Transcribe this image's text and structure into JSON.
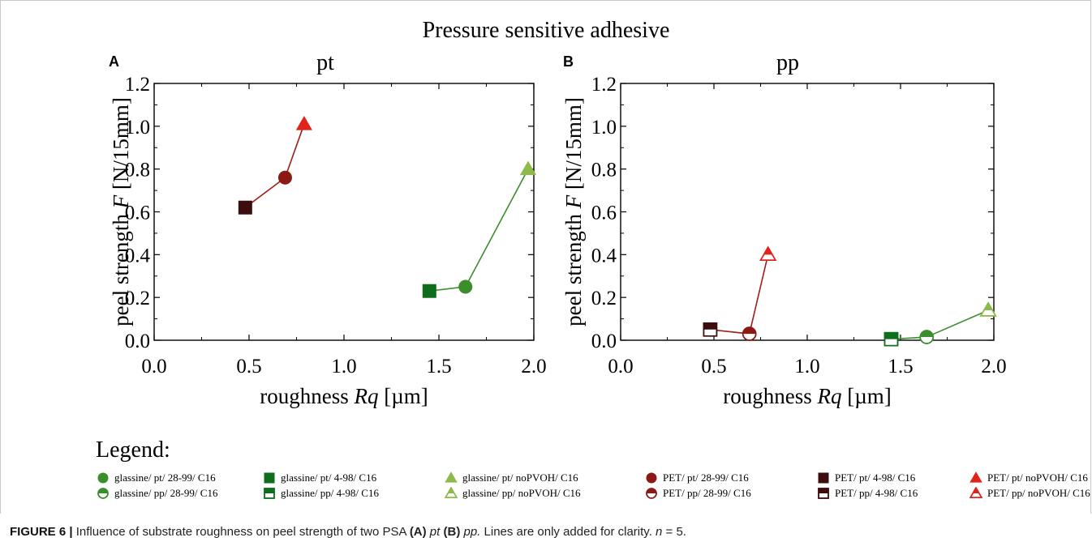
{
  "figure_title": "Pressure sensitive adhesive",
  "panels": [
    {
      "letter": "A",
      "title": "pt"
    },
    {
      "letter": "B",
      "title": "pp"
    }
  ],
  "legend_title": "Legend:",
  "legend": [
    {
      "label": "glassine/ pt/ 28-99/ C16",
      "shape": "circle",
      "fill": "full",
      "color": "#3a8f2c"
    },
    {
      "label": "glassine/ pt/ 4-98/ C16",
      "shape": "square",
      "fill": "full",
      "color": "#0f6e1c"
    },
    {
      "label": "glassine/ pt/ noPVOH/ C16",
      "shape": "triangle",
      "fill": "full",
      "color": "#8dbb4a"
    },
    {
      "label": "PET/ pt/ 28-99/ C16",
      "shape": "circle",
      "fill": "full",
      "color": "#8b1a14"
    },
    {
      "label": "PET/ pt/ 4-98/ C16",
      "shape": "square",
      "fill": "full",
      "color": "#3d0d0d"
    },
    {
      "label": "PET/ pt/ noPVOH/ C16",
      "shape": "triangle",
      "fill": "full",
      "color": "#e0231b"
    },
    {
      "label": "glassine/ pp/ 28-99/ C16",
      "shape": "circle",
      "fill": "half",
      "color": "#3a8f2c"
    },
    {
      "label": "glassine/ pp/ 4-98/ C16",
      "shape": "square",
      "fill": "half",
      "color": "#0f6e1c"
    },
    {
      "label": "glassine/ pp/ noPVOH/ C16",
      "shape": "triangle",
      "fill": "half",
      "color": "#8dbb4a"
    },
    {
      "label": "PET/ pp/ 28-99/ C16",
      "shape": "circle",
      "fill": "half",
      "color": "#8b1a14"
    },
    {
      "label": "PET/ pp/ 4-98/ C16",
      "shape": "square",
      "fill": "half",
      "color": "#3d0d0d"
    },
    {
      "label": "PET/ pp/ noPVOH/ C16",
      "shape": "triangle",
      "fill": "half",
      "color": "#e0231b"
    }
  ],
  "chart_data": [
    {
      "type": "scatter",
      "title": "pt",
      "xlabel": "roughness Rq [µm]",
      "ylabel": "peel strength F [N/15mm]",
      "xlim": [
        0.0,
        2.0
      ],
      "ylim": [
        0.0,
        1.2
      ],
      "xticks": [
        "0.0",
        "0.5",
        "1.0",
        "1.5",
        "2.0"
      ],
      "yticks": [
        "0.0",
        "0.2",
        "0.4",
        "0.6",
        "0.8",
        "1.0",
        "1.2"
      ],
      "series": [
        {
          "name": "PET/ pt",
          "line_color": "#a01e16",
          "points": [
            {
              "x": 0.48,
              "y": 0.62,
              "shape": "square",
              "fill": "full",
              "color": "#3d0d0d"
            },
            {
              "x": 0.69,
              "y": 0.76,
              "shape": "circle",
              "fill": "full",
              "color": "#8b1a14"
            },
            {
              "x": 0.79,
              "y": 1.01,
              "shape": "triangle",
              "fill": "full",
              "color": "#e0231b"
            }
          ]
        },
        {
          "name": "glassine/ pt",
          "line_color": "#3a8f2c",
          "points": [
            {
              "x": 1.45,
              "y": 0.23,
              "shape": "square",
              "fill": "full",
              "color": "#0f6e1c"
            },
            {
              "x": 1.64,
              "y": 0.25,
              "shape": "circle",
              "fill": "full",
              "color": "#3a8f2c"
            },
            {
              "x": 1.97,
              "y": 0.8,
              "shape": "triangle",
              "fill": "full",
              "color": "#8dbb4a"
            }
          ]
        }
      ]
    },
    {
      "type": "scatter",
      "title": "pp",
      "xlabel": "roughness Rq [µm]",
      "ylabel": "peel strength F [N/15mm]",
      "xlim": [
        0.0,
        2.0
      ],
      "ylim": [
        0.0,
        1.2
      ],
      "xticks": [
        "0.0",
        "0.5",
        "1.0",
        "1.5",
        "2.0"
      ],
      "yticks": [
        "0.0",
        "0.2",
        "0.4",
        "0.6",
        "0.8",
        "1.0",
        "1.2"
      ],
      "series": [
        {
          "name": "PET/ pp",
          "line_color": "#a01e16",
          "points": [
            {
              "x": 0.48,
              "y": 0.05,
              "shape": "square",
              "fill": "half",
              "color": "#3d0d0d"
            },
            {
              "x": 0.69,
              "y": 0.03,
              "shape": "circle",
              "fill": "half",
              "color": "#8b1a14"
            },
            {
              "x": 0.79,
              "y": 0.4,
              "shape": "triangle",
              "fill": "half",
              "color": "#e0231b"
            }
          ]
        },
        {
          "name": "glassine/ pp",
          "line_color": "#3a8f2c",
          "points": [
            {
              "x": 1.45,
              "y": 0.005,
              "shape": "square",
              "fill": "half",
              "color": "#0f6e1c"
            },
            {
              "x": 1.64,
              "y": 0.015,
              "shape": "circle",
              "fill": "half",
              "color": "#3a8f2c"
            },
            {
              "x": 1.97,
              "y": 0.14,
              "shape": "triangle",
              "fill": "half",
              "color": "#8dbb4a"
            }
          ]
        }
      ]
    }
  ],
  "caption": {
    "figure_label": "FIGURE 6 |",
    "text_1": " Influence of substrate roughness on peel strength of two PSA ",
    "a_label": "(A)",
    "a_term": " pt ",
    "b_label": "(B)",
    "b_term": " pp.",
    "text_2": " Lines are only added for clarity. ",
    "n_text": "n",
    "n_value": " = 5."
  }
}
